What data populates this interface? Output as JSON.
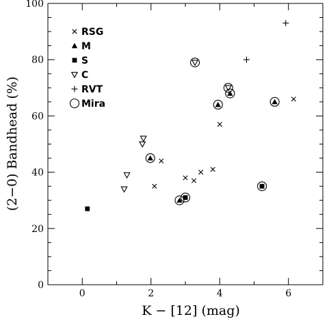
{
  "chart_data": {
    "type": "scatter",
    "title": "",
    "xlabel": "K − [12] (mag)",
    "ylabel": "(2−0) Bandhead (%)",
    "xlim": [
      -1,
      7
    ],
    "ylim": [
      0,
      100
    ],
    "xticks": [
      0,
      2,
      4,
      6
    ],
    "yticks": [
      0,
      20,
      40,
      60,
      80,
      100
    ],
    "grid": false,
    "legend_placement": "top-left",
    "legend": [
      {
        "series": "RSG",
        "label": "RSG",
        "marker": "cross"
      },
      {
        "series": "M",
        "label": "M",
        "marker": "triangle-up-filled"
      },
      {
        "series": "S",
        "label": "S",
        "marker": "square-filled"
      },
      {
        "series": "C",
        "label": "C",
        "marker": "triangle-down-open"
      },
      {
        "series": "RVT",
        "label": "RVT",
        "marker": "plus"
      },
      {
        "series": "Mira",
        "label": "Mira",
        "marker": "circle-open"
      }
    ],
    "series": [
      {
        "name": "RSG",
        "marker": "cross",
        "points": [
          [
            2.1,
            35
          ],
          [
            2.3,
            44
          ],
          [
            3.0,
            38
          ],
          [
            3.25,
            37
          ],
          [
            3.45,
            40
          ],
          [
            3.8,
            41
          ],
          [
            4.0,
            57
          ],
          [
            6.15,
            66
          ]
        ]
      },
      {
        "name": "M",
        "marker": "triangle-up-filled",
        "points": [
          [
            1.98,
            45
          ],
          [
            2.83,
            30
          ],
          [
            3.95,
            64
          ],
          [
            4.3,
            68
          ],
          [
            5.6,
            65
          ]
        ]
      },
      {
        "name": "S",
        "marker": "square-filled",
        "points": [
          [
            0.15,
            27
          ],
          [
            3.0,
            31
          ],
          [
            5.23,
            35
          ]
        ]
      },
      {
        "name": "C",
        "marker": "triangle-down-open",
        "points": [
          [
            1.22,
            34
          ],
          [
            1.3,
            39
          ],
          [
            1.75,
            50
          ],
          [
            1.78,
            52
          ],
          [
            3.28,
            79
          ],
          [
            4.25,
            70
          ]
        ]
      },
      {
        "name": "RVT",
        "marker": "plus",
        "points": [
          [
            4.78,
            80
          ],
          [
            5.92,
            93
          ]
        ]
      },
      {
        "name": "Mira",
        "marker": "circle-open",
        "points": [
          [
            1.98,
            45
          ],
          [
            2.83,
            30
          ],
          [
            3.0,
            31
          ],
          [
            3.28,
            79
          ],
          [
            3.95,
            64
          ],
          [
            4.25,
            70
          ],
          [
            4.3,
            68
          ],
          [
            5.23,
            35
          ],
          [
            5.6,
            65
          ]
        ]
      }
    ]
  }
}
